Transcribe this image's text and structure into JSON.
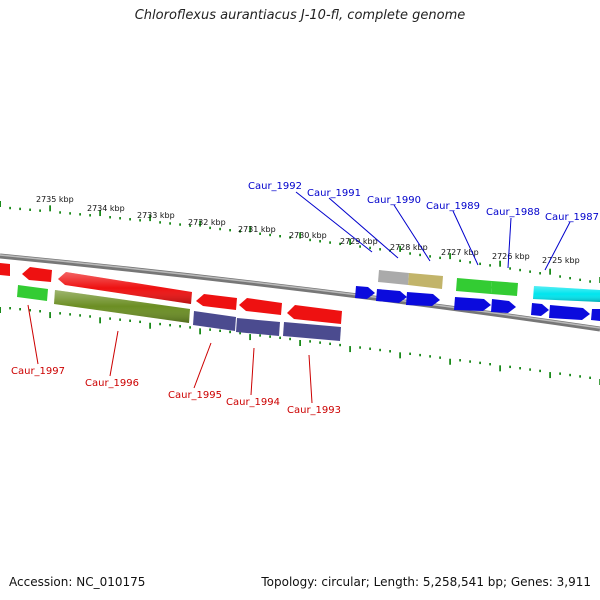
{
  "title": "Chloroflexus aurantiacus J-10-fl, complete genome",
  "footer": {
    "accession": "Accession: NC_010175",
    "summary": "Topology: circular; Length: 5,258,541 bp; Genes: 3,911"
  },
  "colors": {
    "backbone": "#808080",
    "tick": "#1a8a1a",
    "label_plus": "#0000cc",
    "label_minus": "#cc0000",
    "red": "#ee1111",
    "green": "#33cc33",
    "olive": "#6b8e23",
    "slate": "#4b4b8f",
    "blue": "#0b0bdd",
    "cyan": "#00e5ee",
    "gray": "#aaaaaa",
    "khaki": "#c2b46a"
  },
  "kbp_labels": [
    "2735 kbp",
    "2734 kbp",
    "2733 kbp",
    "2732 kbp",
    "2731 kbp",
    "2730 kbp",
    "2729 kbp",
    "2728 kbp",
    "2727 kbp",
    "2726 kbp",
    "2725 kbp"
  ],
  "genes_plus": [
    {
      "label": "Caur_1992"
    },
    {
      "label": "Caur_1991"
    },
    {
      "label": "Caur_1990"
    },
    {
      "label": "Caur_1989"
    },
    {
      "label": "Caur_1988"
    },
    {
      "label": "Caur_1987"
    }
  ],
  "genes_minus": [
    {
      "label": "Caur_1997"
    },
    {
      "label": "Caur_1996"
    },
    {
      "label": "Caur_1995"
    },
    {
      "label": "Caur_1994"
    },
    {
      "label": "Caur_1993"
    }
  ]
}
